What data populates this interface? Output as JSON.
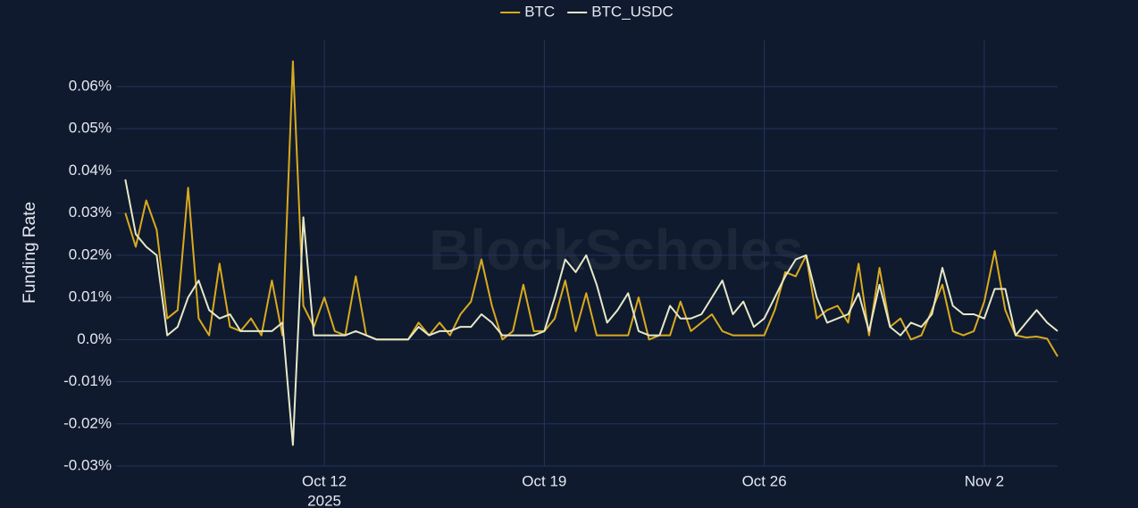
{
  "chart_data": {
    "type": "line",
    "y_label": "Funding Rate",
    "watermark": "BlockScholes",
    "legend": "top-center",
    "grid": true,
    "x": [
      "2025-10-05T16:00",
      "2025-10-06T00:00",
      "2025-10-06T08:00",
      "2025-10-06T16:00",
      "2025-10-07T00:00",
      "2025-10-07T08:00",
      "2025-10-07T16:00",
      "2025-10-08T00:00",
      "2025-10-08T08:00",
      "2025-10-08T16:00",
      "2025-10-09T00:00",
      "2025-10-09T08:00",
      "2025-10-09T16:00",
      "2025-10-10T00:00",
      "2025-10-10T08:00",
      "2025-10-10T16:00",
      "2025-10-11T00:00",
      "2025-10-11T08:00",
      "2025-10-11T16:00",
      "2025-10-12T00:00",
      "2025-10-12T08:00",
      "2025-10-12T16:00",
      "2025-10-13T00:00",
      "2025-10-13T08:00",
      "2025-10-13T16:00",
      "2025-10-14T00:00",
      "2025-10-14T08:00",
      "2025-10-14T16:00",
      "2025-10-15T00:00",
      "2025-10-15T08:00",
      "2025-10-15T16:00",
      "2025-10-16T00:00",
      "2025-10-16T08:00",
      "2025-10-16T16:00",
      "2025-10-17T00:00",
      "2025-10-17T08:00",
      "2025-10-17T16:00",
      "2025-10-18T00:00",
      "2025-10-18T08:00",
      "2025-10-18T16:00",
      "2025-10-19T00:00",
      "2025-10-19T08:00",
      "2025-10-19T16:00",
      "2025-10-20T00:00",
      "2025-10-20T08:00",
      "2025-10-20T16:00",
      "2025-10-21T00:00",
      "2025-10-21T08:00",
      "2025-10-21T16:00",
      "2025-10-22T00:00",
      "2025-10-22T08:00",
      "2025-10-22T16:00",
      "2025-10-23T00:00",
      "2025-10-23T08:00",
      "2025-10-23T16:00",
      "2025-10-24T00:00",
      "2025-10-24T08:00",
      "2025-10-24T16:00",
      "2025-10-25T00:00",
      "2025-10-25T08:00",
      "2025-10-25T16:00",
      "2025-10-26T00:00",
      "2025-10-26T08:00",
      "2025-10-26T16:00",
      "2025-10-27T00:00",
      "2025-10-27T08:00",
      "2025-10-27T16:00",
      "2025-10-28T00:00",
      "2025-10-28T08:00",
      "2025-10-28T16:00",
      "2025-10-29T00:00",
      "2025-10-29T08:00",
      "2025-10-29T16:00",
      "2025-10-30T00:00",
      "2025-10-30T08:00",
      "2025-10-30T16:00",
      "2025-10-31T00:00",
      "2025-10-31T08:00",
      "2025-10-31T16:00",
      "2025-11-01T00:00",
      "2025-11-01T08:00",
      "2025-11-01T16:00",
      "2025-11-02T00:00",
      "2025-11-02T08:00",
      "2025-11-02T16:00",
      "2025-11-03T00:00",
      "2025-11-03T08:00",
      "2025-11-03T16:00",
      "2025-11-04T00:00",
      "2025-11-04T08:00"
    ],
    "series": [
      {
        "name": "BTC",
        "color": "#d9aa1e",
        "values": [
          0.03,
          0.022,
          0.033,
          0.026,
          0.005,
          0.007,
          0.036,
          0.005,
          0.001,
          0.018,
          0.003,
          0.002,
          0.005,
          0.001,
          0.014,
          0.001,
          0.066,
          0.008,
          0.003,
          0.01,
          0.002,
          0.001,
          0.015,
          0.001,
          0,
          0,
          0,
          0,
          0.004,
          0.001,
          0.004,
          0.001,
          0.006,
          0.009,
          0.019,
          0.008,
          0,
          0.002,
          0.013,
          0.002,
          0.002,
          0.005,
          0.014,
          0.002,
          0.011,
          0.001,
          0.001,
          0.001,
          0.001,
          0.01,
          0,
          0.001,
          0.001,
          0.009,
          0.002,
          0.004,
          0.006,
          0.002,
          0.001,
          0.001,
          0.001,
          0.001,
          0.007,
          0.016,
          0.015,
          0.02,
          0.005,
          0.007,
          0.008,
          0.004,
          0.018,
          0.001,
          0.017,
          0.003,
          0.005,
          0,
          0.001,
          0.007,
          0.013,
          0.002,
          0.001,
          0.002,
          0.009,
          0.021,
          0.007,
          0.001,
          0.0005,
          0.0007,
          0.0002,
          -0.004
        ]
      },
      {
        "name": "BTC_USDC",
        "color": "#e6e8c8",
        "values": [
          0.038,
          0.025,
          0.022,
          0.02,
          0.001,
          0.003,
          0.01,
          0.014,
          0.007,
          0.005,
          0.006,
          0.002,
          0.002,
          0.002,
          0.002,
          0.004,
          -0.025,
          0.029,
          0.001,
          0.001,
          0.001,
          0.001,
          0.002,
          0.001,
          0,
          0,
          0,
          0,
          0.003,
          0.001,
          0.002,
          0.002,
          0.003,
          0.003,
          0.006,
          0.004,
          0.001,
          0.001,
          0.001,
          0.001,
          0.002,
          0.01,
          0.019,
          0.016,
          0.02,
          0.013,
          0.004,
          0.007,
          0.011,
          0.002,
          0.001,
          0.001,
          0.008,
          0.005,
          0.005,
          0.006,
          0.01,
          0.014,
          0.006,
          0.009,
          0.003,
          0.005,
          0.01,
          0.015,
          0.019,
          0.02,
          0.01,
          0.004,
          0.005,
          0.006,
          0.011,
          0.002,
          0.013,
          0.003,
          0.001,
          0.004,
          0.003,
          0.006,
          0.017,
          0.008,
          0.006,
          0.006,
          0.005,
          0.012,
          0.012,
          0.001,
          0.004,
          0.007,
          0.004,
          0.002
        ]
      }
    ],
    "xlim": [
      "2025-10-05T09:00",
      "2025-11-04T08:00"
    ],
    "xticks": [
      {
        "value": "2025-10-12T00:00",
        "label": "Oct 12",
        "sublabel": "2025"
      },
      {
        "value": "2025-10-19T00:00",
        "label": "Oct 19"
      },
      {
        "value": "2025-10-26T00:00",
        "label": "Oct 26"
      },
      {
        "value": "2025-11-02T00:00",
        "label": "Nov 2"
      }
    ],
    "ylim": [
      -0.03,
      0.071
    ],
    "yticks": [
      {
        "value": -0.03,
        "label": "-0.03%"
      },
      {
        "value": -0.02,
        "label": "-0.02%"
      },
      {
        "value": -0.01,
        "label": "-0.01%"
      },
      {
        "value": 0,
        "label": "0.0%"
      },
      {
        "value": 0.01,
        "label": "0.01%"
      },
      {
        "value": 0.02,
        "label": "0.02%"
      },
      {
        "value": 0.03,
        "label": "0.03%"
      },
      {
        "value": 0.04,
        "label": "0.04%"
      },
      {
        "value": 0.05,
        "label": "0.05%"
      },
      {
        "value": 0.06,
        "label": "0.06%"
      }
    ]
  }
}
